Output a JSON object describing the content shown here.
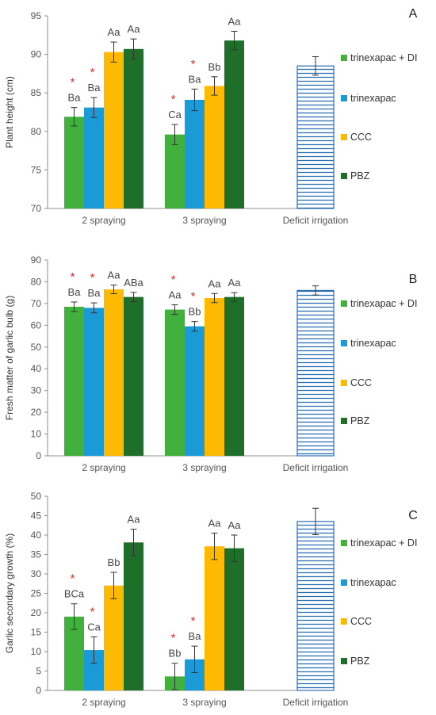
{
  "chart_data": [
    {
      "type": "bar",
      "panel_label": "A",
      "ylabel": "Plant height (cm)",
      "ylim": [
        70,
        95
      ],
      "yticks": [
        70,
        75,
        80,
        85,
        90,
        95
      ],
      "categories": [
        "2 spraying",
        "3 spraying",
        "Deficit irrigation"
      ],
      "series": [
        {
          "name": "trinexapac + DI",
          "color": "#41b03c",
          "values": [
            81.9,
            79.6,
            null
          ],
          "errors": [
            1.2,
            1.3,
            null
          ],
          "labels": [
            "Ba",
            "Ca",
            null
          ],
          "stars": [
            true,
            true,
            false
          ]
        },
        {
          "name": "trinexapac",
          "color": "#1a9ad6",
          "values": [
            83.1,
            84.1,
            null
          ],
          "errors": [
            1.3,
            1.4,
            null
          ],
          "labels": [
            "Ba",
            "Ba",
            null
          ],
          "stars": [
            true,
            true,
            false
          ]
        },
        {
          "name": "CCC",
          "color": "#fdba00",
          "values": [
            90.3,
            85.9,
            null
          ],
          "errors": [
            1.3,
            1.2,
            null
          ],
          "labels": [
            "Aa",
            "Bb",
            null
          ],
          "stars": [
            false,
            false,
            false
          ]
        },
        {
          "name": "PBZ",
          "color": "#1f6e2a",
          "values": [
            90.7,
            91.8,
            null
          ],
          "errors": [
            1.3,
            1.2,
            null
          ],
          "labels": [
            "Aa",
            "Aa",
            null
          ],
          "stars": [
            false,
            false,
            false
          ]
        }
      ],
      "deficit": {
        "value": 88.5,
        "error": 1.2
      },
      "legend_position": "right",
      "grid": false
    },
    {
      "type": "bar",
      "panel_label": "B",
      "ylabel": "Fresh matter of garlic bulb (g)",
      "ylim": [
        0,
        90
      ],
      "yticks": [
        0,
        10,
        20,
        30,
        40,
        50,
        60,
        70,
        80,
        90
      ],
      "categories": [
        "2 spraying",
        "3 spraying",
        "Deficit irrigation"
      ],
      "series": [
        {
          "name": "trinexapac + DI",
          "color": "#41b03c",
          "values": [
            68.5,
            67.2,
            null
          ],
          "errors": [
            2.2,
            2.2,
            null
          ],
          "labels": [
            "Ba",
            "Aa",
            null
          ],
          "stars": [
            true,
            true,
            false
          ]
        },
        {
          "name": "trinexapac",
          "color": "#1a9ad6",
          "values": [
            68.0,
            59.5,
            null
          ],
          "errors": [
            2.3,
            2.2,
            null
          ],
          "labels": [
            "Ba",
            "Bb",
            null
          ],
          "stars": [
            true,
            true,
            false
          ]
        },
        {
          "name": "CCC",
          "color": "#fdba00",
          "values": [
            76.5,
            72.5,
            null
          ],
          "errors": [
            2.0,
            2.1,
            null
          ],
          "labels": [
            "Aa",
            "Aa",
            null
          ],
          "stars": [
            false,
            false,
            false
          ]
        },
        {
          "name": "PBZ",
          "color": "#1f6e2a",
          "values": [
            73.0,
            73.0,
            null
          ],
          "errors": [
            2.1,
            2.0,
            null
          ],
          "labels": [
            "ABa",
            "Aa",
            null
          ],
          "stars": [
            false,
            false,
            false
          ]
        }
      ],
      "deficit": {
        "value": 76.0,
        "error": 2.1
      },
      "legend_position": "right",
      "grid": false
    },
    {
      "type": "bar",
      "panel_label": "C",
      "ylabel": "Garlic secondary growth (%)",
      "ylim": [
        0,
        50
      ],
      "yticks": [
        0,
        5,
        10,
        15,
        20,
        25,
        30,
        35,
        40,
        45,
        50
      ],
      "categories": [
        "2 spraying",
        "3 spraying",
        "Deficit irrigation"
      ],
      "series": [
        {
          "name": "trinexapac + DI",
          "color": "#41b03c",
          "values": [
            19.0,
            3.6,
            null
          ],
          "errors": [
            3.3,
            3.4,
            null
          ],
          "labels": [
            "BCa",
            "Bb",
            null
          ],
          "stars": [
            true,
            true,
            false
          ]
        },
        {
          "name": "trinexapac",
          "color": "#1a9ad6",
          "values": [
            10.4,
            8.0,
            null
          ],
          "errors": [
            3.4,
            3.4,
            null
          ],
          "labels": [
            "Ca",
            "Ba",
            null
          ],
          "stars": [
            true,
            true,
            false
          ]
        },
        {
          "name": "CCC",
          "color": "#fdba00",
          "values": [
            27.0,
            37.1,
            null
          ],
          "errors": [
            3.4,
            3.4,
            null
          ],
          "labels": [
            "Bb",
            "Aa",
            null
          ],
          "stars": [
            false,
            false,
            false
          ]
        },
        {
          "name": "PBZ",
          "color": "#1f6e2a",
          "values": [
            38.1,
            36.6,
            null
          ],
          "errors": [
            3.4,
            3.4,
            null
          ],
          "labels": [
            "Aa",
            "Aa",
            null
          ],
          "stars": [
            false,
            false,
            false
          ]
        }
      ],
      "deficit": {
        "value": 43.5,
        "error": 3.4
      },
      "legend_position": "right",
      "grid": false
    }
  ],
  "colors": {
    "deficit_stroke": "#2a6fb5",
    "deficit_hatch": "#2a6fb5",
    "axis": "#8c8c8c",
    "star": "#e8292e"
  }
}
